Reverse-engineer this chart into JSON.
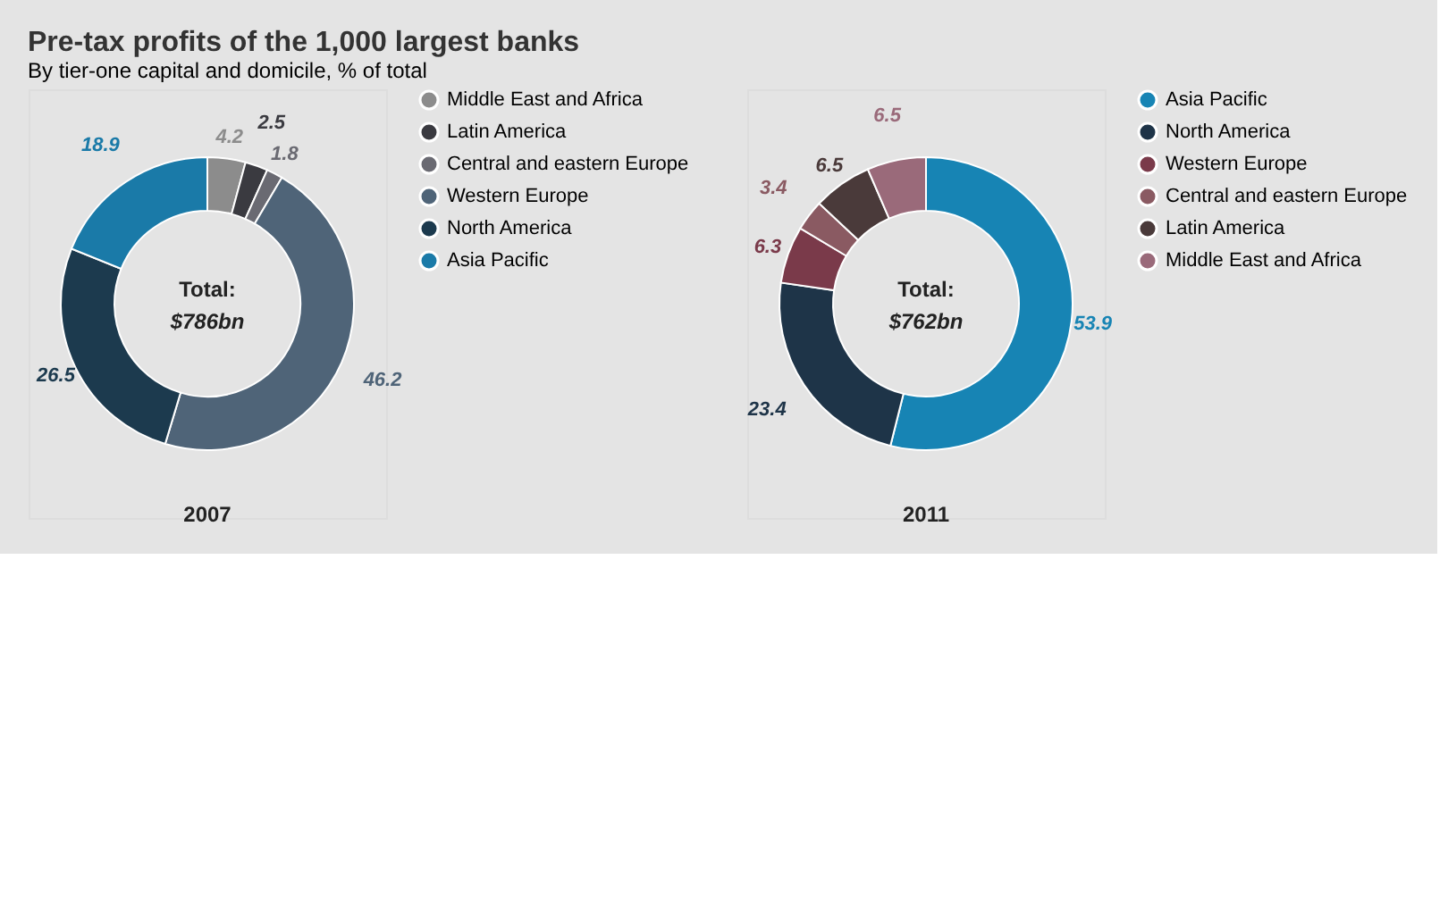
{
  "chart_data": [
    {
      "type": "donut",
      "title": "Pre-tax profits of the 1,000 largest banks",
      "subtitle": "By tier-one capital and domicile, % of total",
      "categories": [
        "Middle East and Africa",
        "Latin America",
        "Central and eastern Europe",
        "Western Europe",
        "North America",
        "Asia Pacific"
      ],
      "values": [
        4.2,
        2.5,
        1.8,
        46.2,
        26.5,
        18.9
      ],
      "colors": [
        "#8c8c8c",
        "#3a3a40",
        "#6a6a72",
        "#4f6478",
        "#1c3a4e",
        "#1a7aa8"
      ],
      "annotations": [
        "Total:",
        "$786bn",
        "2007"
      ],
      "data_labels": true,
      "legend": "right"
    },
    {
      "type": "donut",
      "categories": [
        "Asia Pacific",
        "North America",
        "Western Europe",
        "Central and eastern Europe",
        "Latin America",
        "Middle East and Africa"
      ],
      "values": [
        53.9,
        23.4,
        6.3,
        3.4,
        6.5,
        6.5
      ],
      "colors": [
        "#1784b4",
        "#1e3448",
        "#7a3a4a",
        "#8a5a62",
        "#4a3a3a",
        "#9a6a7a"
      ],
      "annotations": [
        "Total:",
        "$762bn",
        "2011"
      ],
      "data_labels": true,
      "legend": "right"
    }
  ]
}
